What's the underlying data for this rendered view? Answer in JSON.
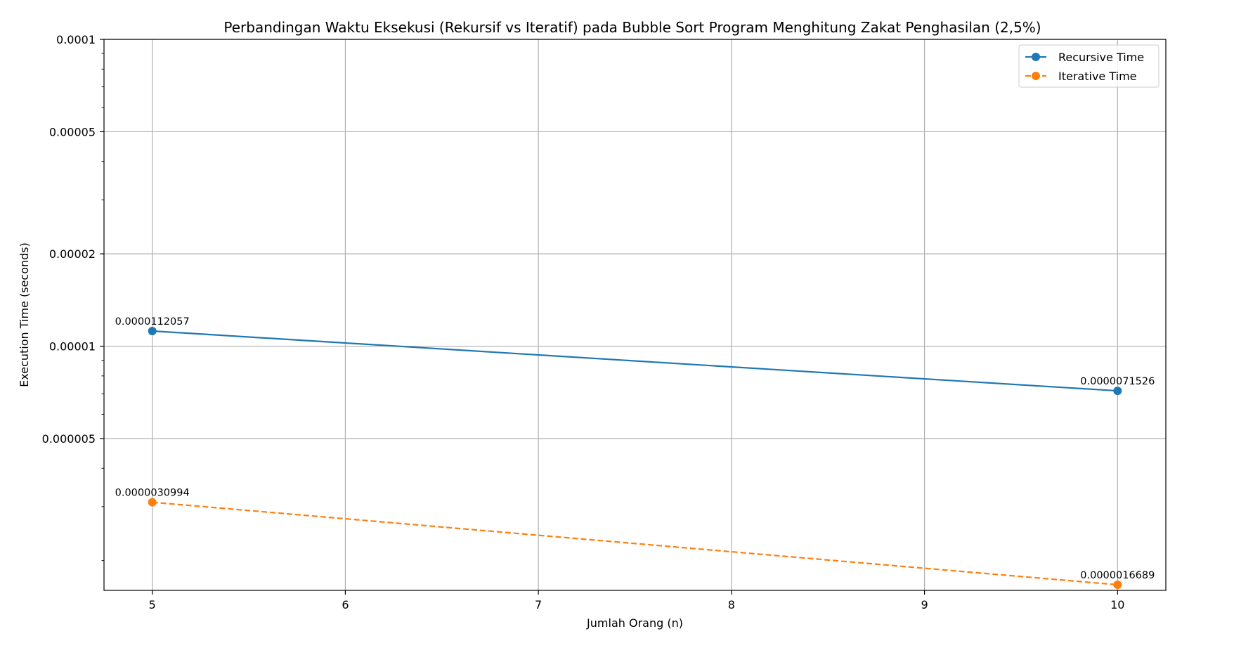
{
  "chart_data": {
    "type": "line",
    "title": "Perbandingan Waktu Eksekusi (Rekursif vs Iteratif) pada Bubble Sort Program Menghitung Zakat Penghasilan (2,5%)",
    "xlabel": "Jumlah Orang (n)",
    "ylabel": "Execution Time (seconds)",
    "y_scale": "log",
    "x": [
      5,
      10
    ],
    "xlim": [
      4.75,
      10.25
    ],
    "ylim": [
      1.6e-06,
      0.0001
    ],
    "x_ticks": [
      5,
      6,
      7,
      8,
      9,
      10
    ],
    "x_tick_labels": [
      "5",
      "6",
      "7",
      "8",
      "9",
      "10"
    ],
    "y_ticks": [
      5e-06,
      1e-05,
      2e-05,
      5e-05,
      0.0001
    ],
    "y_tick_labels": [
      "0.000005",
      "0.00001",
      "0.00002",
      "0.00005",
      "0.0001"
    ],
    "grid": true,
    "legend_position": "top-right",
    "series": [
      {
        "name": "Recursive Time",
        "values": [
          1.12057e-05,
          7.1526e-06
        ],
        "labels": [
          "0.0000112057",
          "0.0000071526"
        ],
        "color": "#1f77b4",
        "line_style": "solid",
        "marker": "circle"
      },
      {
        "name": "Iterative Time",
        "values": [
          3.0994e-06,
          1.6689e-06
        ],
        "labels": [
          "0.0000030994",
          "0.0000016689"
        ],
        "color": "#ff7f0e",
        "line_style": "dashed",
        "marker": "circle"
      }
    ]
  }
}
